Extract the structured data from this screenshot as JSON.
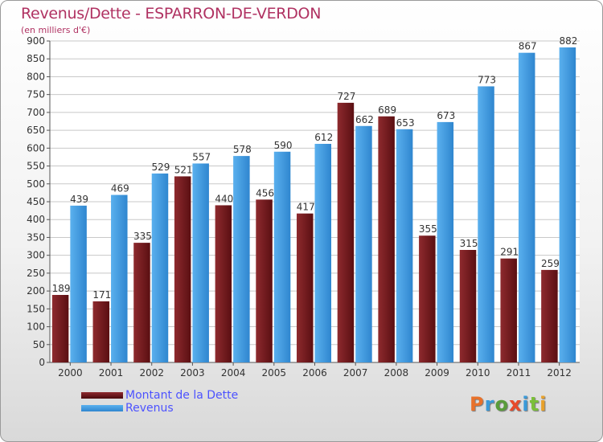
{
  "chart_data": {
    "type": "bar",
    "title": "Revenus/Dette - ESPARRON-DE-VERDON",
    "subtitle": "(en milliers d'€)",
    "categories": [
      "2000",
      "2001",
      "2002",
      "2003",
      "2004",
      "2005",
      "2006",
      "2007",
      "2008",
      "2009",
      "2010",
      "2011",
      "2012"
    ],
    "series": [
      {
        "name": "Montant de la Dette",
        "color": "#7a1a1f",
        "values": [
          189,
          171,
          335,
          521,
          440,
          456,
          417,
          727,
          689,
          355,
          315,
          291,
          259
        ]
      },
      {
        "name": "Revenus",
        "color": "#3c97e0",
        "values": [
          439,
          469,
          529,
          557,
          578,
          590,
          612,
          662,
          653,
          673,
          773,
          867,
          882
        ]
      }
    ],
    "ylim": [
      0,
      900
    ],
    "yticks": [
      0,
      50,
      100,
      150,
      200,
      250,
      300,
      350,
      400,
      450,
      500,
      550,
      600,
      650,
      700,
      750,
      800,
      850,
      900
    ],
    "grid": true,
    "legend_position": "bottom-left"
  },
  "branding": {
    "logo_text": "Proxiti",
    "logo_colors": [
      "#e8712a",
      "#3a9ad9",
      "#5a9c3a",
      "#e84a2a",
      "#3a9ad9",
      "#7bbf3a",
      "#e8a12a"
    ]
  }
}
